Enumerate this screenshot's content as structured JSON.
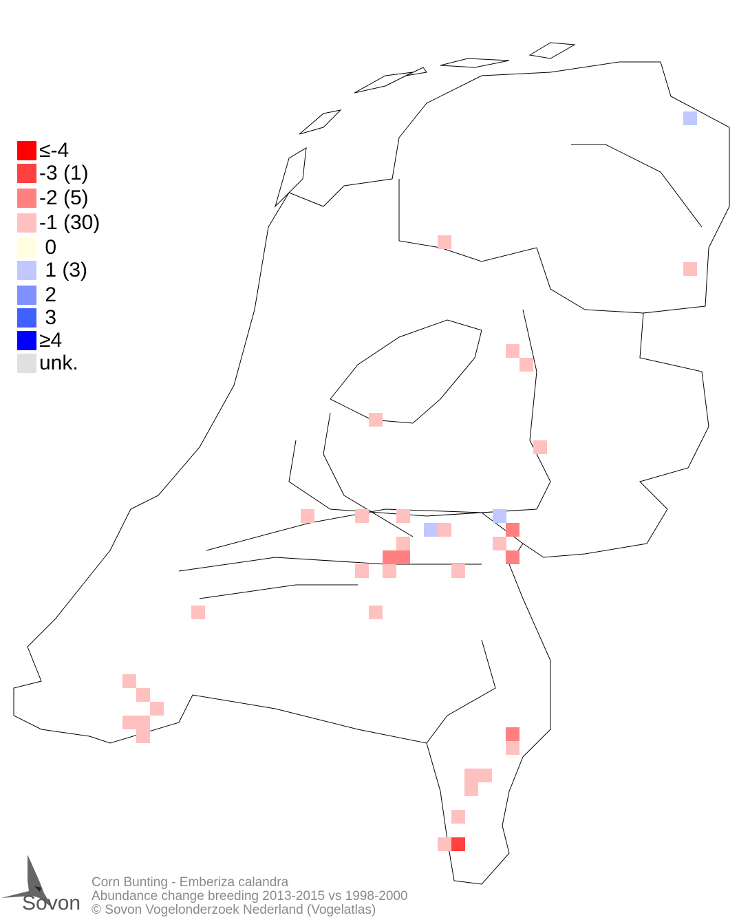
{
  "legend": [
    {
      "label": "≤-4",
      "color": "#ff0000",
      "level": -4
    },
    {
      "label": "-3 (1)",
      "color": "#ff4040",
      "level": -3
    },
    {
      "label": "-2 (5)",
      "color": "#ff8080",
      "level": -2
    },
    {
      "label": "-1 (30)",
      "color": "#ffc0c0",
      "level": -1
    },
    {
      "label": " 0",
      "color": "#ffffe0",
      "level": 0
    },
    {
      "label": " 1 (3)",
      "color": "#c0c8ff",
      "level": 1
    },
    {
      "label": " 2",
      "color": "#8090ff",
      "level": 2
    },
    {
      "label": " 3",
      "color": "#4060ff",
      "level": 3
    },
    {
      "label": "≥4",
      "color": "#0000ff",
      "level": 4
    },
    {
      "label": "unk.",
      "color": "#e0e0e0",
      "level": null
    }
  ],
  "footer": {
    "species": "Corn Bunting - Emberiza calandra",
    "subtitle": "Abundance change breeding  2013-2015 vs 1998-2000",
    "copyright": "© Sovon Vogelonderzoek Nederland (Vogelatlas)"
  },
  "logo": {
    "text": "Sovon"
  }
}
